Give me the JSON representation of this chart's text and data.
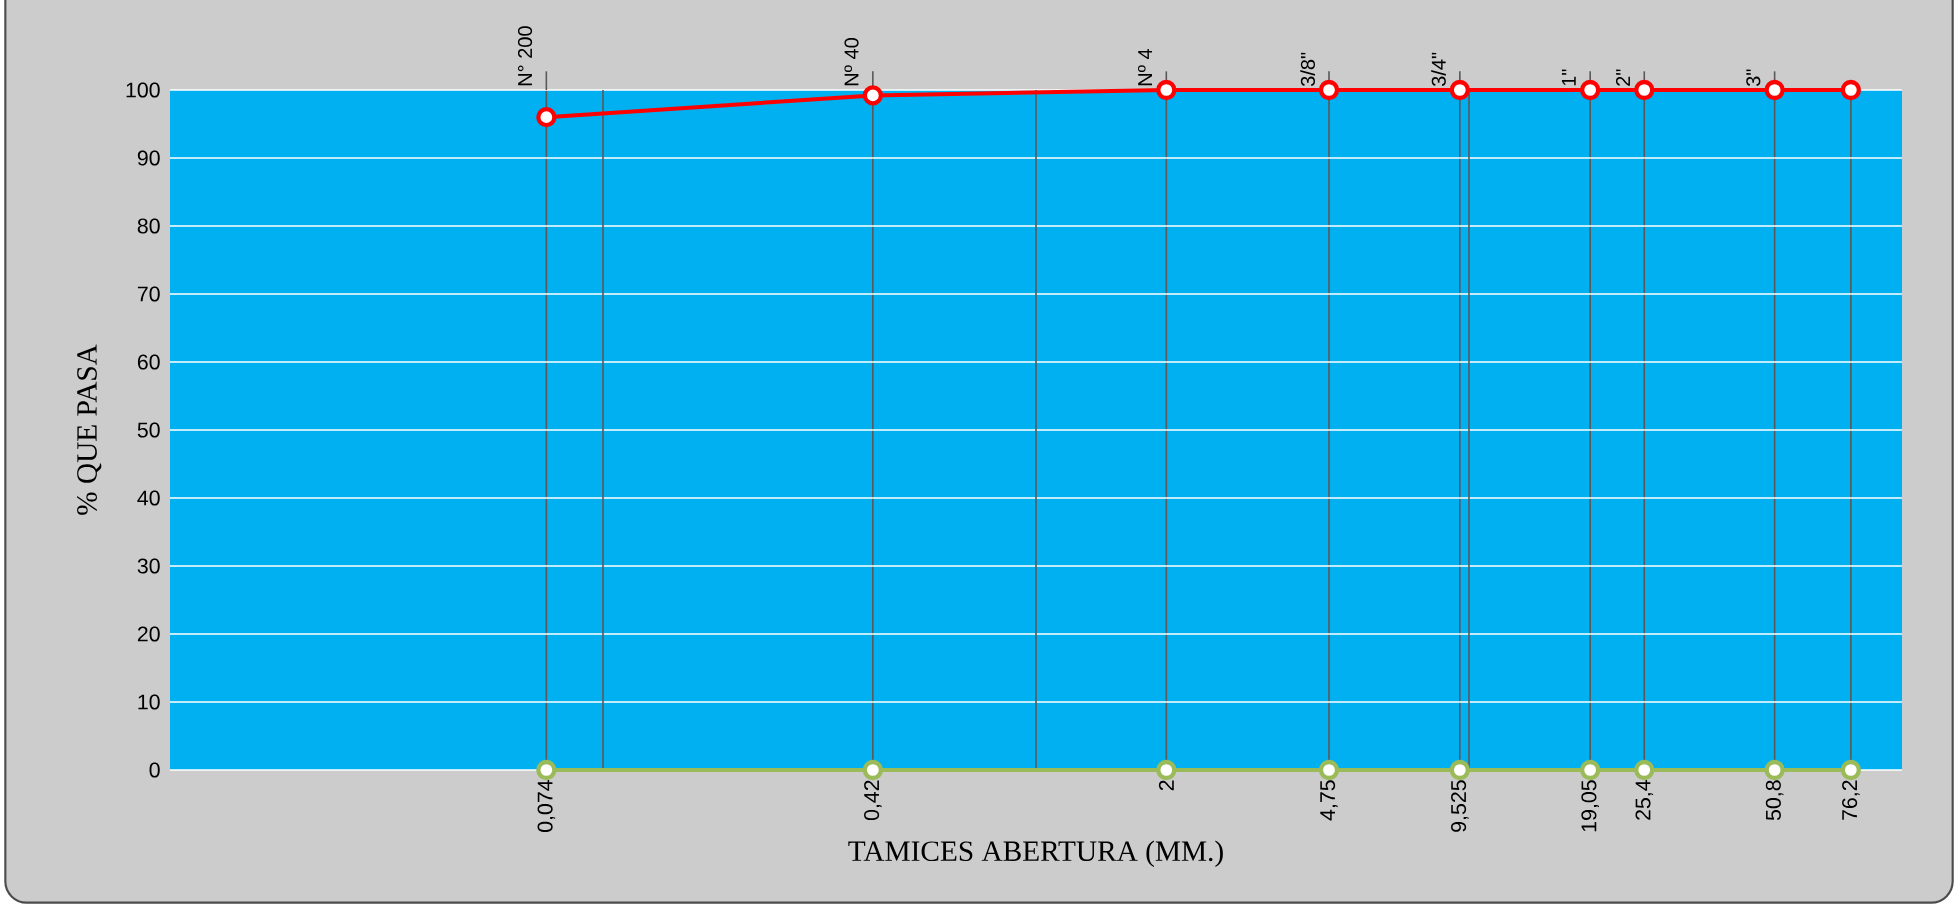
{
  "chart_data": {
    "type": "line",
    "xlabel": "TAMICES ABERTURA (MM.)",
    "ylabel": "%  QUE PASA",
    "log": "x",
    "x": [
      0.074,
      0.42,
      2,
      4.75,
      9.525,
      19.05,
      25.4,
      50.8,
      76.2
    ],
    "series": [
      {
        "color": "#ff0000",
        "values": [
          96,
          99.2,
          100,
          100,
          100,
          100,
          100,
          100,
          100
        ]
      },
      {
        "color": "#9bbb59",
        "values": [
          0,
          0,
          0,
          0,
          0,
          0,
          0,
          0,
          0
        ]
      }
    ],
    "xlim": [
      0.01,
      100
    ],
    "ylim": [
      0,
      100
    ],
    "yticks": [
      0,
      10,
      20,
      30,
      40,
      50,
      60,
      70,
      80,
      90,
      100
    ],
    "xticks": [
      {
        "value": 0.074,
        "label": "0,074"
      },
      {
        "value": 0.1,
        "label": null
      },
      {
        "value": 0.42,
        "label": "0,42"
      },
      {
        "value": 1,
        "label": null
      },
      {
        "value": 2,
        "label": "2"
      },
      {
        "value": 4.75,
        "label": "4,75"
      },
      {
        "value": 9.525,
        "label": "9,525"
      },
      {
        "value": 10,
        "label": null
      },
      {
        "value": 19.05,
        "label": "19,05"
      },
      {
        "value": 25.4,
        "label": "25,4"
      },
      {
        "value": 50.8,
        "label": "50,8"
      },
      {
        "value": 76.2,
        "label": "76,2"
      }
    ],
    "annotations": [
      "N° 200",
      "Nº 40",
      "Nº 4",
      "3/8\"",
      "3/4\"",
      "1\"",
      "2\"",
      "3\""
    ],
    "grid": true,
    "marker": "circle"
  }
}
